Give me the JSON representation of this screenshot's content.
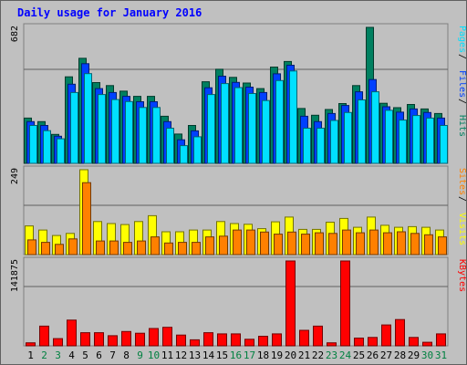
{
  "chart_data": {
    "type": "bar",
    "title": "Daily usage for January 2016",
    "categories": [
      "1",
      "2",
      "3",
      "4",
      "5",
      "6",
      "7",
      "8",
      "9",
      "10",
      "11",
      "12",
      "13",
      "14",
      "15",
      "16",
      "17",
      "18",
      "19",
      "20",
      "21",
      "22",
      "23",
      "24",
      "25",
      "26",
      "27",
      "28",
      "29",
      "30",
      "31"
    ],
    "weekend_days": [
      "2",
      "3",
      "9",
      "10",
      "16",
      "17",
      "23",
      "24",
      "30",
      "31"
    ],
    "panels": [
      {
        "name": "hits-files-pages",
        "ymax_label": "682",
        "ylim": [
          0,
          682
        ],
        "legend": [
          "Pages",
          "Files",
          "Hits"
        ],
        "series": [
          {
            "name": "Hits",
            "color": "#008060",
            "values": [
              227,
              209,
              145,
              434,
              527,
              405,
              390,
              362,
              336,
              336,
              236,
              147,
              190,
              409,
              472,
              431,
              403,
              375,
              483,
              511,
              275,
              241,
              270,
              300,
              390,
              682,
              301,
              279,
              295,
              273,
              250
            ]
          },
          {
            "name": "Files",
            "color": "#0040ff",
            "values": [
              209,
              190,
              136,
              397,
              500,
              375,
              355,
              336,
              309,
              309,
              209,
              118,
              163,
              379,
              437,
              406,
              382,
              355,
              449,
              492,
              236,
              209,
              250,
              290,
              359,
              420,
              284,
              257,
              273,
              255,
              227
            ]
          },
          {
            "name": "Pages",
            "color": "#00e0ff",
            "values": [
              190,
              164,
              123,
              355,
              450,
              345,
              320,
              310,
              280,
              280,
              176,
              89,
              133,
              345,
              400,
              380,
              350,
              315,
              415,
              463,
              176,
              176,
              215,
              255,
              318,
              359,
              266,
              217,
              240,
              227,
              190
            ]
          }
        ]
      },
      {
        "name": "visits-sites",
        "ymax_label": "249",
        "ylim": [
          0,
          249
        ],
        "legend": [
          "Sites",
          "Visits"
        ],
        "series": [
          {
            "name": "Visits",
            "color": "#ffff00",
            "values": [
              84,
              72,
              56,
              62,
              249,
              97,
              91,
              88,
              97,
              114,
              67,
              67,
              72,
              72,
              97,
              91,
              89,
              76,
              96,
              110,
              74,
              74,
              95,
              106,
              80,
              110,
              86,
              80,
              82,
              80,
              72
            ]
          },
          {
            "name": "Sites",
            "color": "#ff8000",
            "values": [
              43,
              36,
              30,
              46,
              211,
              40,
              40,
              36,
              40,
              52,
              34,
              36,
              36,
              52,
              54,
              72,
              72,
              66,
              60,
              66,
              60,
              64,
              62,
              72,
              64,
              72,
              64,
              67,
              62,
              58,
              52
            ]
          }
        ]
      },
      {
        "name": "kbytes",
        "ymax_label": "141875",
        "ylim": [
          0,
          141875
        ],
        "legend": [
          "KBytes"
        ],
        "series": [
          {
            "name": "KBytes",
            "color": "#ff0000",
            "values": [
              5000,
              33000,
              12000,
              43000,
              22000,
              22000,
              17000,
              24000,
              21000,
              29000,
              31000,
              18000,
              10000,
              22000,
              20000,
              20000,
              11000,
              16000,
              20000,
              141875,
              26000,
              33000,
              5000,
              141875,
              13000,
              14000,
              35000,
              44000,
              14000,
              6000,
              20000
            ]
          }
        ]
      }
    ]
  },
  "colors": {
    "background": "#c0c0c0",
    "plot_background": "#c0c0c0",
    "weekday_label": "#000000",
    "weekend_label": "#008040",
    "title": "#0000ff"
  }
}
